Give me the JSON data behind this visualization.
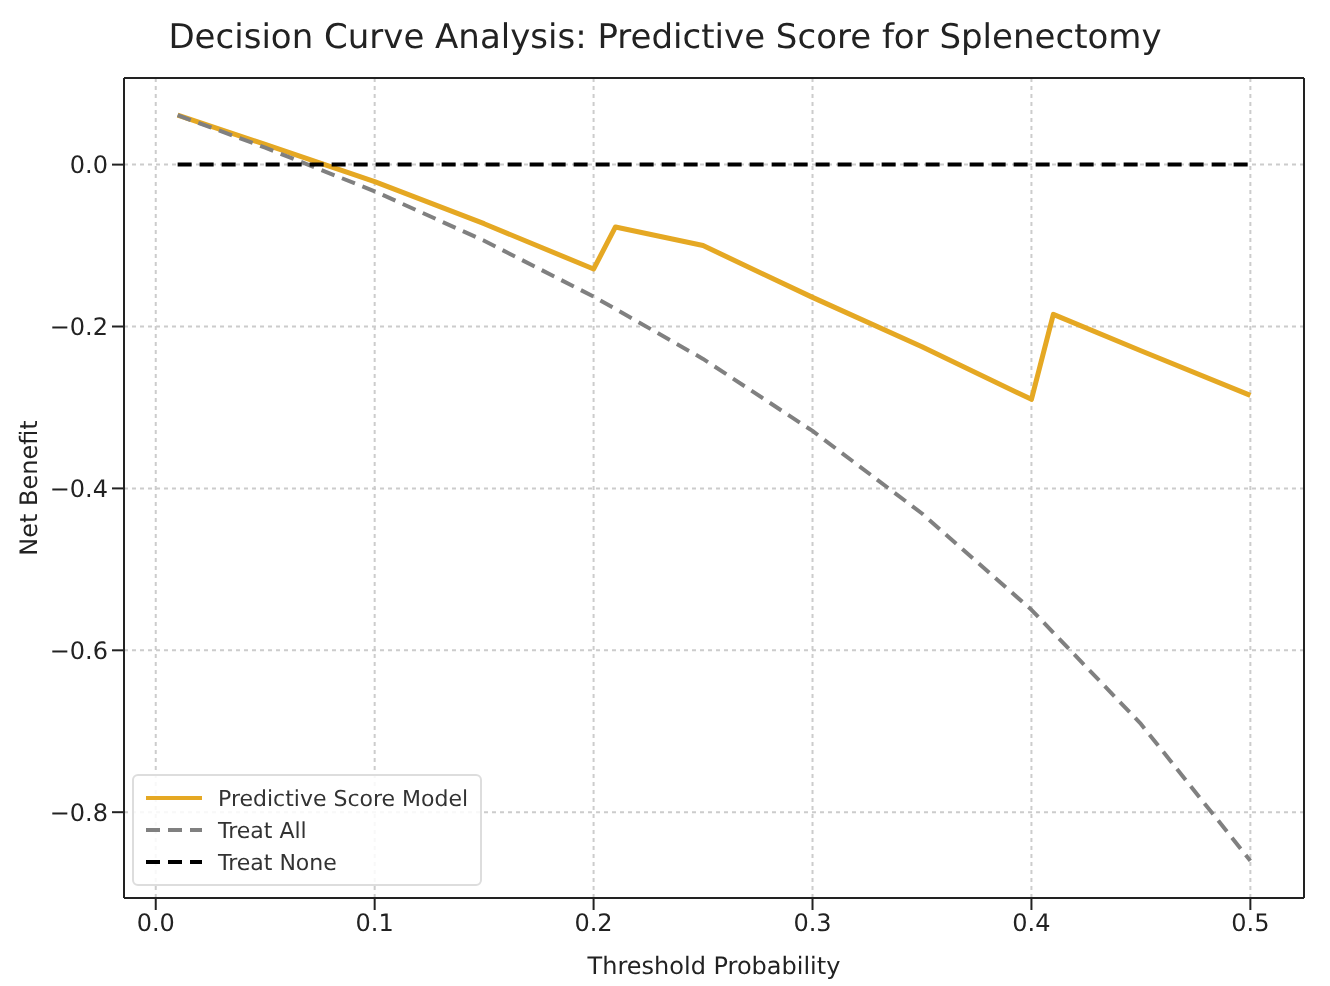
{
  "chart_data": {
    "type": "line",
    "title": "Decision Curve Analysis: Predictive Score for Splenectomy",
    "xlabel": "Threshold Probability",
    "ylabel": "Net Benefit",
    "series": [
      {
        "name": "Predictive Score Model",
        "color": "#e5a823",
        "line_style": "solid",
        "x": [
          0.01,
          0.05,
          0.1,
          0.15,
          0.2,
          0.21,
          0.25,
          0.3,
          0.35,
          0.4,
          0.41,
          0.45,
          0.5
        ],
        "values": [
          0.061,
          0.025,
          -0.021,
          -0.073,
          -0.129,
          -0.077,
          -0.1,
          -0.164,
          -0.225,
          -0.29,
          -0.185,
          -0.23,
          -0.285
        ]
      },
      {
        "name": "Treat All",
        "color": "#808080",
        "line_style": "dashed",
        "x": [
          0.01,
          0.05,
          0.1,
          0.15,
          0.2,
          0.25,
          0.3,
          0.35,
          0.4,
          0.45,
          0.5
        ],
        "values": [
          0.061,
          0.021,
          -0.033,
          -0.094,
          -0.163,
          -0.24,
          -0.329,
          -0.431,
          -0.55,
          -0.691,
          -0.86
        ]
      },
      {
        "name": "Treat None",
        "color": "#000000",
        "line_style": "dashed",
        "x": [
          0.01,
          0.5
        ],
        "values": [
          0,
          0
        ]
      }
    ],
    "xlim": [
      -0.0145,
      0.5245
    ],
    "ylim": [
      -0.906,
      0.107
    ],
    "xticks": [
      {
        "value": 0,
        "label": "0.0"
      },
      {
        "value": 0.1,
        "label": "0.1"
      },
      {
        "value": 0.2,
        "label": "0.2"
      },
      {
        "value": 0.3,
        "label": "0.3"
      },
      {
        "value": 0.4,
        "label": "0.4"
      },
      {
        "value": 0.5,
        "label": "0.5"
      }
    ],
    "yticks": [
      {
        "value": 0,
        "label": "0.0"
      },
      {
        "value": -0.2,
        "label": "−0.2"
      },
      {
        "value": -0.4,
        "label": "−0.4"
      },
      {
        "value": -0.6,
        "label": "−0.6"
      },
      {
        "value": -0.8,
        "label": "−0.8"
      }
    ],
    "grid": true,
    "legend": "bottom left",
    "marker": "none"
  }
}
